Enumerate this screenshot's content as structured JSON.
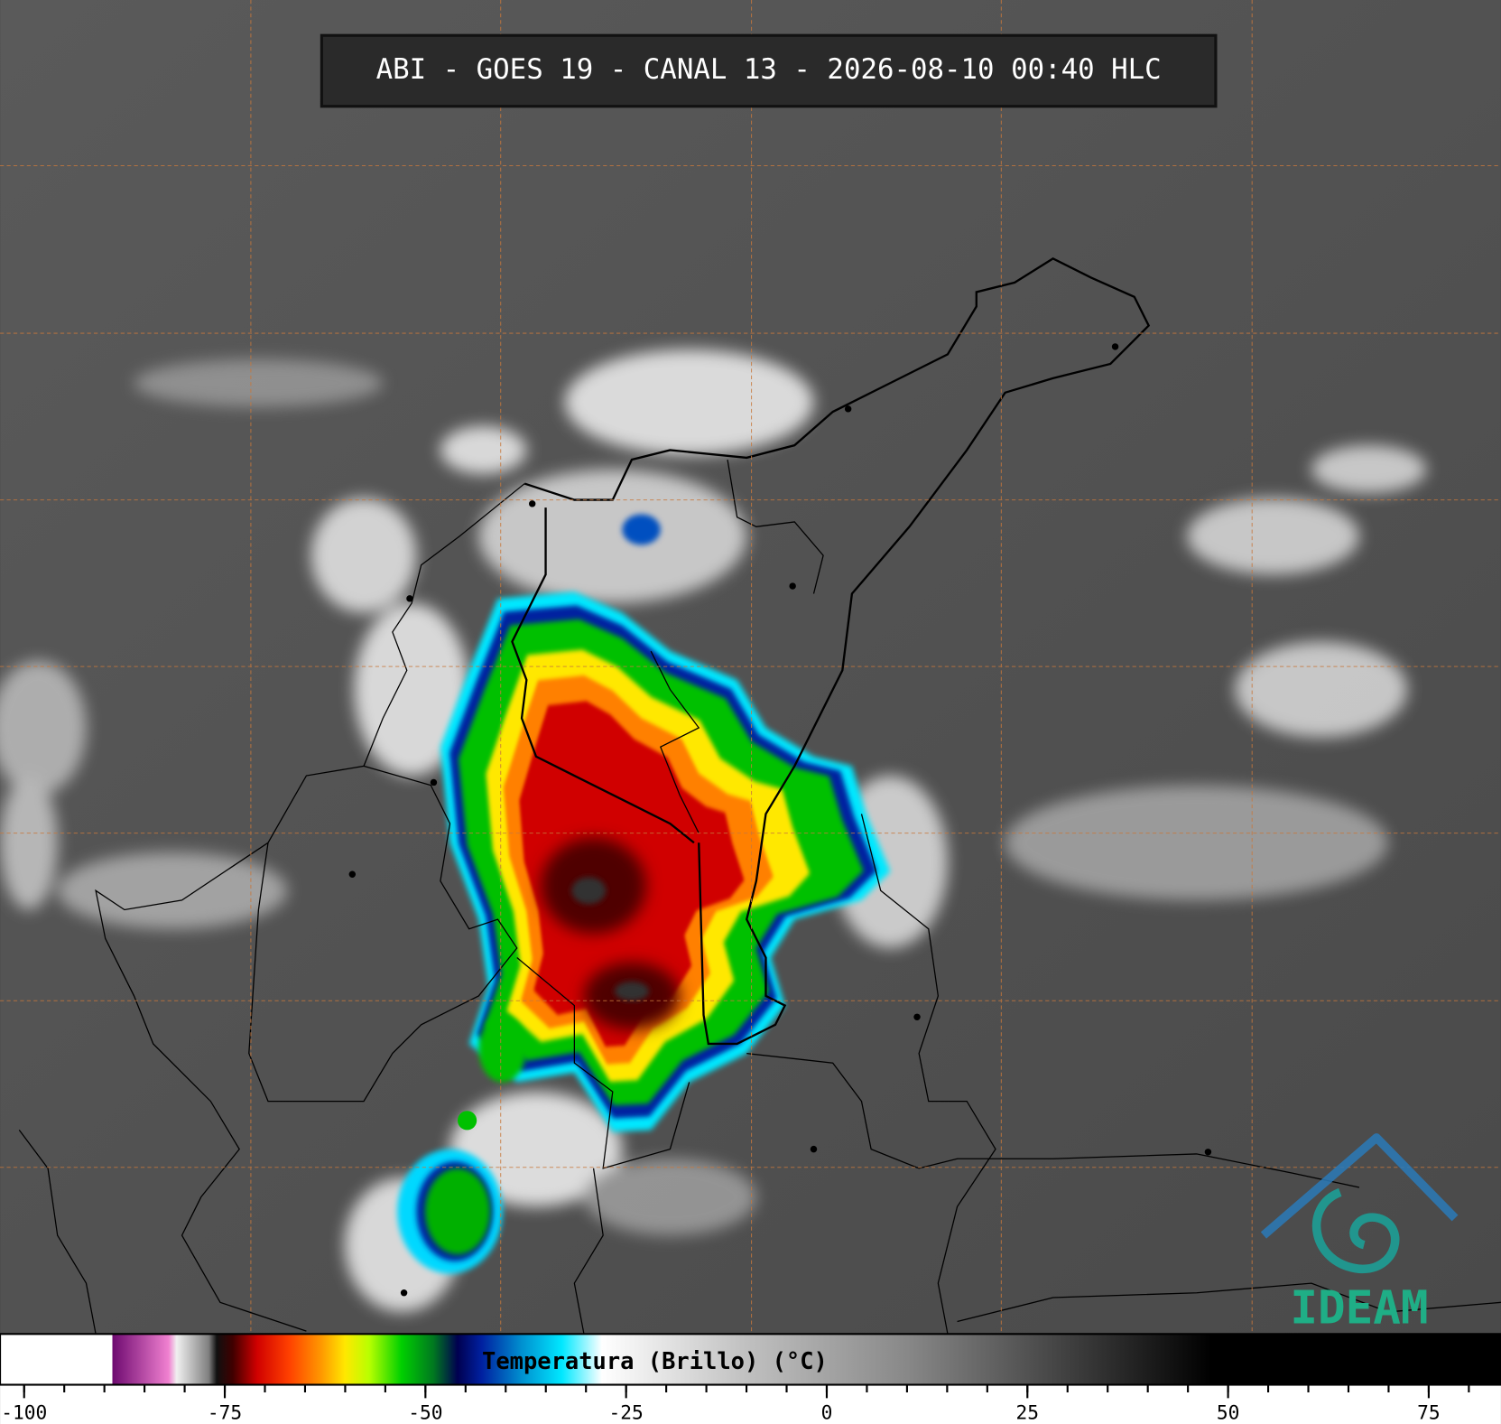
{
  "header": {
    "title": "ABI - GOES 19 - CANAL 13 - 2026-08-10 00:40 HLC"
  },
  "colorbar": {
    "label": "Temperatura (Brillo) (°C)",
    "lim": [
      -103,
      84
    ],
    "ticks": [
      -100,
      -75,
      -50,
      -25,
      0,
      25,
      50,
      75
    ],
    "stops": [
      {
        "value": -103,
        "color": "#ffffff"
      },
      {
        "value": -89,
        "color": "#ffffff"
      },
      {
        "value": -89,
        "color": "#6e0a70"
      },
      {
        "value": -82,
        "color": "#f080d0"
      },
      {
        "value": -81,
        "color": "#f0f0f0"
      },
      {
        "value": -77,
        "color": "#808080"
      },
      {
        "value": -76,
        "color": "#101010"
      },
      {
        "value": -74,
        "color": "#400000"
      },
      {
        "value": -71,
        "color": "#d00000"
      },
      {
        "value": -67,
        "color": "#ff4000"
      },
      {
        "value": -63,
        "color": "#ff9800"
      },
      {
        "value": -60,
        "color": "#ffe800"
      },
      {
        "value": -57,
        "color": "#b8ff00"
      },
      {
        "value": -53,
        "color": "#00d000"
      },
      {
        "value": -49,
        "color": "#007820"
      },
      {
        "value": -46,
        "color": "#000050"
      },
      {
        "value": -43,
        "color": "#0020a0"
      },
      {
        "value": -38,
        "color": "#0090d0"
      },
      {
        "value": -33,
        "color": "#00e8ff"
      },
      {
        "value": -28,
        "color": "#ffffff"
      },
      {
        "value": -10,
        "color": "#c0c0c0"
      },
      {
        "value": 10,
        "color": "#888888"
      },
      {
        "value": 30,
        "color": "#404040"
      },
      {
        "value": 48,
        "color": "#000000"
      },
      {
        "value": 84,
        "color": "#000000"
      }
    ]
  },
  "logo": {
    "text": "IDEAM"
  }
}
